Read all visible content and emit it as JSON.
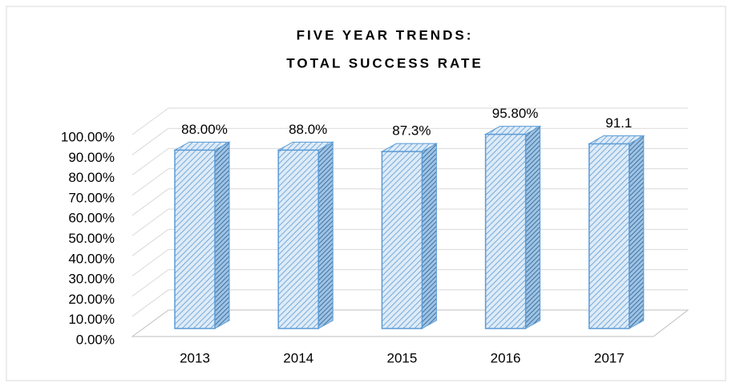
{
  "chart_data": {
    "type": "bar3d",
    "title": [
      "FIVE YEAR TRENDS:",
      "TOTAL SUCCESS RATE"
    ],
    "categories": [
      "2013",
      "2014",
      "2015",
      "2016",
      "2017"
    ],
    "values": [
      88,
      88,
      87.3,
      95.8,
      91.1
    ],
    "value_labels": [
      "88.00%",
      "88.0%",
      "87.3%",
      "95.80%",
      "91.1"
    ],
    "color": "#5b9bd5",
    "ylim": [
      0,
      100
    ],
    "yticks": [
      {
        "value": 0,
        "label": "0.00%"
      },
      {
        "value": 10,
        "label": "10.00%"
      },
      {
        "value": 20,
        "label": "20.00%"
      },
      {
        "value": 30,
        "label": "30.00%"
      },
      {
        "value": 40,
        "label": "40.00%"
      },
      {
        "value": 50,
        "label": "50.00%"
      },
      {
        "value": 60,
        "label": "60.00%"
      },
      {
        "value": 70,
        "label": "70.00%"
      },
      {
        "value": 80,
        "label": "80.00%"
      },
      {
        "value": 90,
        "label": "90.00%"
      },
      {
        "value": 100,
        "label": "100.00%"
      }
    ],
    "grid": true
  }
}
